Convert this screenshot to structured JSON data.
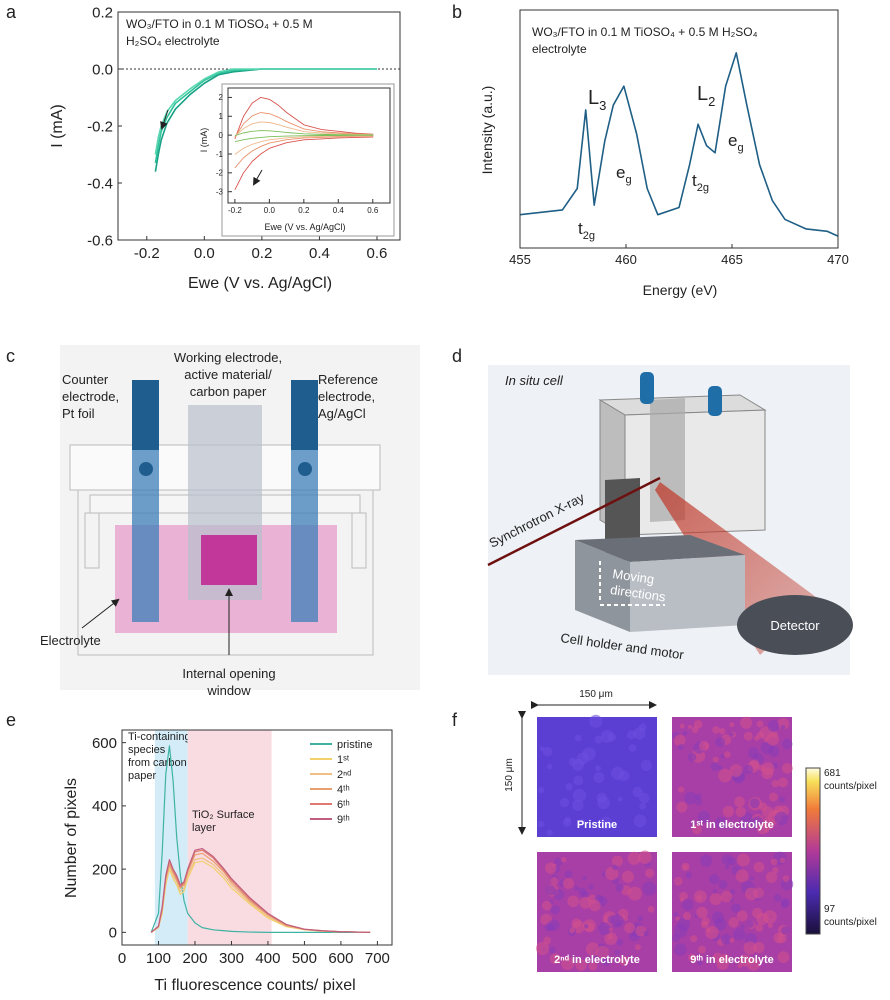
{
  "panel_labels": [
    "a",
    "b",
    "c",
    "d",
    "e",
    "f"
  ],
  "chart_data": [
    {
      "type": "line",
      "title": [
        "WO₃/FTO in 0.1 M TiOSO₄ + 0.5 M",
        "H₂SO₄ electrolyte"
      ],
      "x_label": "Ewe (V vs. Ag/AgCl)",
      "y_label": "I (mA)",
      "x": [
        -0.17,
        -0.16,
        -0.15,
        -0.13,
        -0.1,
        -0.05,
        0,
        0.05,
        0.1,
        0.2,
        0.3,
        0.4,
        0.5,
        0.6
      ],
      "series": [
        {
          "color": "#17a085",
          "values": [
            -0.36,
            -0.3,
            -0.25,
            -0.19,
            -0.14,
            -0.09,
            -0.05,
            -0.02,
            -0.01,
            0,
            0,
            0,
            0,
            0
          ]
        },
        {
          "color": "#2fc39a",
          "values": [
            -0.33,
            -0.27,
            -0.22,
            -0.17,
            -0.12,
            -0.08,
            -0.04,
            -0.015,
            -0.005,
            0,
            0,
            0,
            0,
            0
          ]
        },
        {
          "color": "#5ad6b0",
          "values": [
            -0.3,
            -0.24,
            -0.2,
            -0.15,
            -0.11,
            -0.07,
            -0.035,
            -0.01,
            0,
            0,
            0,
            0,
            0,
            0
          ]
        }
      ],
      "xlim": [
        -0.3,
        0.68
      ],
      "xticks": [
        {
          "value": -0.2,
          "label": "-0.2"
        },
        {
          "value": 0,
          "label": "0.0"
        },
        {
          "value": 0.2,
          "label": "0.2"
        },
        {
          "value": 0.4,
          "label": "0.4"
        },
        {
          "value": 0.6,
          "label": "0.6"
        }
      ],
      "ylim": [
        -0.6,
        0.2
      ],
      "yticks": [
        {
          "value": 0.2,
          "label": "0.2"
        },
        {
          "value": 0,
          "label": "0.0"
        },
        {
          "value": -0.2,
          "label": "-0.2"
        },
        {
          "value": -0.4,
          "label": "-0.4"
        },
        {
          "value": -0.6,
          "label": "-0.6"
        }
      ]
    },
    {
      "type": "line",
      "x_label": "Ewe (V vs. Ag/AgCl)",
      "y_label": "I (mA)",
      "series": [
        {
          "color": "#d9534f",
          "x": [
            -0.2,
            -0.15,
            -0.1,
            -0.05,
            0,
            0.1,
            0.2,
            0.3,
            0.4,
            0.5,
            0.6,
            0.6,
            0.5,
            0.4,
            0.3,
            0.2,
            0.1,
            0.05,
            0,
            -0.05,
            -0.1,
            -0.15,
            -0.2
          ],
          "values": [
            -2.9,
            -2.0,
            -1.4,
            -1.0,
            -0.7,
            -0.4,
            -0.25,
            -0.2,
            -0.15,
            -0.12,
            -0.1,
            0.05,
            0.1,
            0.2,
            0.3,
            0.55,
            1.2,
            1.6,
            1.9,
            2.0,
            1.7,
            1.0,
            -0.2
          ]
        },
        {
          "color": "#e8916a",
          "x": [
            -0.2,
            -0.15,
            -0.1,
            -0.05,
            0,
            0.1,
            0.2,
            0.3,
            0.4,
            0.5,
            0.6,
            0.6,
            0.5,
            0.4,
            0.3,
            0.2,
            0.1,
            0.05,
            0,
            -0.05,
            -0.1,
            -0.15,
            -0.2
          ],
          "values": [
            -1.74,
            -1.2,
            -0.84,
            -0.6,
            -0.42,
            -0.24,
            -0.15,
            -0.12,
            -0.09,
            -0.07,
            -0.06,
            0.03,
            0.06,
            0.12,
            0.18,
            0.33,
            0.72,
            0.96,
            1.14,
            1.2,
            1.02,
            0.6,
            -0.12
          ]
        },
        {
          "color": "#f0b88a",
          "x": [
            -0.2,
            -0.15,
            -0.1,
            -0.05,
            0,
            0.1,
            0.2,
            0.3,
            0.4,
            0.5,
            0.6,
            0.6,
            0.5,
            0.4,
            0.3,
            0.2,
            0.1,
            0.05,
            0,
            -0.05,
            -0.1,
            -0.15,
            -0.2
          ],
          "values": [
            -1.02,
            -0.7,
            -0.49,
            -0.35,
            -0.25,
            -0.14,
            -0.09,
            -0.07,
            -0.05,
            -0.04,
            -0.04,
            0.02,
            0.04,
            0.07,
            0.11,
            0.19,
            0.42,
            0.56,
            0.67,
            0.7,
            0.6,
            0.35,
            -0.07
          ]
        },
        {
          "color": "#7cbf5a",
          "x": [
            -0.2,
            -0.15,
            -0.1,
            -0.05,
            0,
            0.1,
            0.2,
            0.3,
            0.4,
            0.5,
            0.6,
            0.6,
            0.5,
            0.4,
            0.3,
            0.2,
            0.1,
            0.05,
            0,
            -0.05,
            -0.1,
            -0.15,
            -0.2
          ],
          "values": [
            -0.35,
            -0.24,
            -0.17,
            -0.12,
            -0.08,
            -0.05,
            -0.03,
            -0.02,
            -0.02,
            -0.01,
            -0.01,
            0.01,
            0.01,
            0.02,
            0.04,
            0.07,
            0.14,
            0.19,
            0.23,
            0.24,
            0.2,
            0.12,
            -0.02
          ]
        }
      ],
      "xlim": [
        -0.24,
        0.7
      ],
      "xticks": [
        {
          "value": -0.2,
          "label": "-0.2"
        },
        {
          "value": 0,
          "label": "0.0"
        },
        {
          "value": 0.2,
          "label": "0.2"
        },
        {
          "value": 0.4,
          "label": "0.4"
        },
        {
          "value": 0.6,
          "label": "0.6"
        }
      ],
      "ylim": [
        -3.6,
        2.5
      ],
      "yticks": [
        2,
        1,
        0,
        -1,
        -2,
        -3
      ]
    },
    {
      "type": "line",
      "title": [
        "WO₃/FTO in 0.1 M TiOSO₄ + 0.5 M H₂SO₄",
        "electrolyte"
      ],
      "x_label": "Energy (eV)",
      "y_label": "Intensity (a.u.)",
      "x": [
        455,
        456,
        457,
        457.7,
        458.1,
        458.5,
        459,
        459.4,
        459.9,
        460.5,
        461,
        461.5,
        462.5,
        463,
        463.4,
        463.8,
        464.2,
        464.7,
        465.2,
        465.7,
        466.3,
        466.9,
        467.5,
        468.5,
        469.5,
        470
      ],
      "series": [
        {
          "color": "#1f5f86",
          "values": [
            0.14,
            0.15,
            0.16,
            0.25,
            0.58,
            0.18,
            0.45,
            0.6,
            0.68,
            0.48,
            0.25,
            0.14,
            0.17,
            0.35,
            0.52,
            0.43,
            0.4,
            0.68,
            0.82,
            0.6,
            0.35,
            0.2,
            0.12,
            0.08,
            0.07,
            0.05
          ]
        }
      ],
      "xlim": [
        455,
        470
      ],
      "xticks": [
        455,
        460,
        465,
        470
      ],
      "ylim": [
        0,
        1
      ],
      "annotations": [
        {
          "text": "L",
          "sub": "3"
        },
        {
          "text": "e",
          "sub": "g"
        },
        {
          "text": "t",
          "sub": "2g"
        },
        {
          "text": "L",
          "sub": "2"
        },
        {
          "text": "t",
          "sub": "2g"
        },
        {
          "text": "e",
          "sub": "g"
        }
      ]
    },
    {
      "type": "line",
      "x_label": "Ti fluorescence counts/ pixel",
      "y_label": "Number of pixels",
      "x": [
        80,
        100,
        110,
        120,
        130,
        140,
        150,
        160,
        170,
        180,
        200,
        220,
        250,
        280,
        300,
        350,
        400,
        450,
        500,
        550,
        600,
        650,
        680
      ],
      "series": [
        {
          "name": "pristine",
          "color": "#3fb3a3",
          "values": [
            0,
            60,
            250,
            500,
            590,
            480,
            300,
            180,
            100,
            60,
            30,
            15,
            8,
            5,
            3,
            1,
            0,
            0,
            0,
            0,
            0,
            0,
            0
          ]
        },
        {
          "name": "1ˢᵗ",
          "color": "#f2d16b",
          "values": [
            0,
            15,
            60,
            150,
            200,
            170,
            150,
            120,
            130,
            170,
            220,
            225,
            205,
            170,
            140,
            90,
            45,
            18,
            8,
            4,
            2,
            1,
            0
          ]
        },
        {
          "name": "2ⁿᵈ",
          "color": "#efbf84",
          "values": [
            0,
            16,
            65,
            160,
            210,
            180,
            160,
            130,
            140,
            180,
            230,
            235,
            215,
            180,
            150,
            95,
            50,
            20,
            9,
            4,
            2,
            1,
            0
          ]
        },
        {
          "name": "4ᵗʰ",
          "color": "#e8a070",
          "values": [
            0,
            18,
            70,
            170,
            215,
            190,
            165,
            140,
            150,
            190,
            245,
            250,
            225,
            190,
            158,
            100,
            55,
            22,
            9,
            4,
            2,
            1,
            0
          ]
        },
        {
          "name": "6ᵗʰ",
          "color": "#e07a70",
          "values": [
            0,
            19,
            75,
            175,
            225,
            195,
            172,
            145,
            155,
            195,
            255,
            260,
            235,
            195,
            165,
            105,
            58,
            24,
            10,
            5,
            2,
            1,
            0
          ]
        },
        {
          "name": "9ᵗʰ",
          "color": "#c0607e",
          "values": [
            0,
            20,
            80,
            180,
            230,
            200,
            180,
            150,
            160,
            200,
            260,
            265,
            240,
            200,
            170,
            110,
            60,
            25,
            10,
            5,
            2,
            1,
            0
          ]
        }
      ],
      "regions": [
        {
          "range": [
            90,
            180
          ],
          "color": "#d3ecf7",
          "label": [
            "Ti-containing",
            "species",
            "from carbon",
            "paper"
          ]
        },
        {
          "range": [
            180,
            410
          ],
          "color": "#f9dbe2",
          "label": [
            "TiO₂ Surface",
            "layer"
          ]
        }
      ],
      "xlim": [
        0,
        740
      ],
      "xticks": [
        0,
        100,
        200,
        300,
        400,
        500,
        600,
        700
      ],
      "ylim": [
        -40,
        640
      ],
      "yticks": [
        0,
        200,
        400,
        600
      ],
      "legend": "upper right"
    }
  ],
  "diagram_c": {
    "working_electrode": [
      "Working electrode,",
      "active material/",
      "carbon paper"
    ],
    "counter_electrode": [
      "Counter",
      "electrode,",
      "Pt foil"
    ],
    "reference_electrode": [
      "Reference",
      "electrode,",
      "Ag/AgCl"
    ],
    "electrolyte": "Electrolyte",
    "window": [
      "Internal opening",
      "window"
    ]
  },
  "diagram_d": {
    "cell": "In situ cell",
    "xray": "Synchrotron X-ray",
    "moving": [
      "Moving",
      "directions"
    ],
    "detector": "Detector",
    "holder": "Cell holder and motor"
  },
  "maps_f": {
    "scale_x": "150 μm",
    "scale_y": "150 μm",
    "maps": [
      "Pristine",
      "1ˢᵗ in electrolyte",
      "2ⁿᵈ in electrolyte",
      "9ᵗʰ in electrolyte"
    ],
    "colorbar": {
      "max": 681,
      "min": 97,
      "unit": "counts/pixel"
    }
  }
}
